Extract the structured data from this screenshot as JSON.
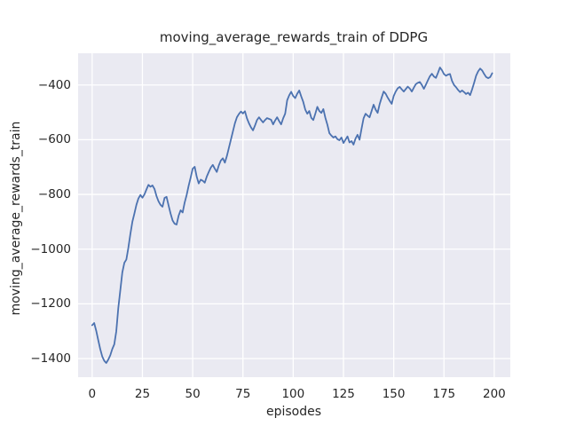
{
  "title": "moving_average_rewards_train of DDPG",
  "colors": {
    "line": "#4c72b0",
    "plot_background": "#eaeaf2",
    "grid": "#ffffff",
    "text": "#262626",
    "figure_background": "#ffffff"
  },
  "chart_data": {
    "type": "line",
    "title": "moving_average_rewards_train of DDPG",
    "xlabel": "episodes",
    "ylabel": "moving_average_rewards_train",
    "legend": "none",
    "grid": true,
    "style": "seaborn-darkgrid",
    "x_ticks": [
      0,
      25,
      50,
      75,
      100,
      125,
      150,
      175,
      200
    ],
    "y_ticks": [
      -1400,
      -1200,
      -1000,
      -800,
      -600,
      -400
    ],
    "xlim": [
      -7,
      208
    ],
    "ylim": [
      -1468,
      -284
    ],
    "x": [
      0,
      1,
      2,
      3,
      4,
      5,
      6,
      7,
      8,
      9,
      10,
      11,
      12,
      13,
      14,
      15,
      16,
      17,
      18,
      19,
      20,
      21,
      22,
      23,
      24,
      25,
      26,
      27,
      28,
      29,
      30,
      31,
      32,
      33,
      34,
      35,
      36,
      37,
      38,
      39,
      40,
      41,
      42,
      43,
      44,
      45,
      46,
      47,
      48,
      49,
      50,
      51,
      52,
      53,
      54,
      55,
      56,
      57,
      58,
      59,
      60,
      61,
      62,
      63,
      64,
      65,
      66,
      67,
      68,
      69,
      70,
      71,
      72,
      73,
      74,
      75,
      76,
      77,
      78,
      79,
      80,
      81,
      82,
      83,
      84,
      85,
      86,
      87,
      88,
      89,
      90,
      91,
      92,
      93,
      94,
      95,
      96,
      97,
      98,
      99,
      100,
      101,
      102,
      103,
      104,
      105,
      106,
      107,
      108,
      109,
      110,
      111,
      112,
      113,
      114,
      115,
      116,
      117,
      118,
      119,
      120,
      121,
      122,
      123,
      124,
      125,
      126,
      127,
      128,
      129,
      130,
      131,
      132,
      133,
      134,
      135,
      136,
      137,
      138,
      139,
      140,
      141,
      142,
      143,
      144,
      145,
      146,
      147,
      148,
      149,
      150,
      151,
      152,
      153,
      154,
      155,
      156,
      157,
      158,
      159,
      160,
      161,
      162,
      163,
      164,
      165,
      166,
      167,
      168,
      169,
      170,
      171,
      172,
      173,
      174,
      175,
      176,
      177,
      178,
      179,
      180,
      181,
      182,
      183,
      184,
      185,
      186,
      187,
      188,
      189,
      190,
      191,
      192,
      193,
      194,
      195,
      196,
      197,
      198,
      199
    ],
    "y": [
      -1278,
      -1270,
      -1298,
      -1332,
      -1365,
      -1392,
      -1408,
      -1416,
      -1404,
      -1388,
      -1365,
      -1348,
      -1300,
      -1215,
      -1150,
      -1085,
      -1050,
      -1038,
      -995,
      -945,
      -900,
      -870,
      -838,
      -815,
      -802,
      -812,
      -800,
      -782,
      -765,
      -772,
      -767,
      -780,
      -806,
      -825,
      -838,
      -845,
      -813,
      -809,
      -840,
      -870,
      -895,
      -907,
      -910,
      -878,
      -858,
      -866,
      -830,
      -802,
      -768,
      -738,
      -706,
      -699,
      -735,
      -760,
      -746,
      -750,
      -757,
      -735,
      -718,
      -702,
      -692,
      -706,
      -718,
      -694,
      -676,
      -668,
      -684,
      -660,
      -630,
      -600,
      -570,
      -540,
      -518,
      -506,
      -497,
      -504,
      -496,
      -522,
      -540,
      -555,
      -566,
      -548,
      -528,
      -518,
      -528,
      -537,
      -528,
      -521,
      -524,
      -527,
      -544,
      -530,
      -518,
      -532,
      -544,
      -522,
      -505,
      -456,
      -438,
      -425,
      -440,
      -448,
      -432,
      -420,
      -442,
      -462,
      -490,
      -505,
      -495,
      -520,
      -528,
      -505,
      -480,
      -495,
      -502,
      -488,
      -520,
      -545,
      -576,
      -585,
      -592,
      -588,
      -598,
      -602,
      -592,
      -612,
      -600,
      -588,
      -610,
      -605,
      -618,
      -596,
      -582,
      -600,
      -560,
      -522,
      -505,
      -512,
      -518,
      -495,
      -472,
      -490,
      -502,
      -470,
      -446,
      -424,
      -432,
      -446,
      -458,
      -469,
      -440,
      -424,
      -412,
      -407,
      -416,
      -424,
      -415,
      -406,
      -413,
      -424,
      -410,
      -397,
      -392,
      -389,
      -400,
      -414,
      -399,
      -383,
      -368,
      -359,
      -369,
      -374,
      -356,
      -336,
      -346,
      -360,
      -366,
      -362,
      -360,
      -385,
      -400,
      -408,
      -418,
      -426,
      -420,
      -426,
      -433,
      -428,
      -437,
      -416,
      -392,
      -366,
      -350,
      -340,
      -347,
      -360,
      -371,
      -375,
      -371,
      -357
    ]
  }
}
